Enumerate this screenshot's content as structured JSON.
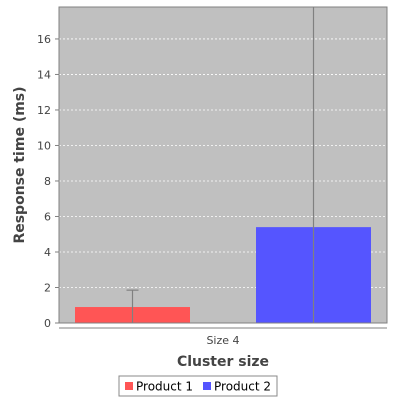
{
  "chart_data": {
    "type": "bar",
    "title": "",
    "xlabel": "Cluster size",
    "ylabel": "Response time (ms)",
    "categories": [
      "Size 4"
    ],
    "ylim": [
      0,
      17.8
    ],
    "yticks": [
      0,
      2,
      4,
      6,
      8,
      10,
      12,
      14,
      16
    ],
    "grid": true,
    "legend_position": "bottom",
    "series": [
      {
        "name": "Product 1",
        "color": "#ff5555",
        "values": [
          0.9
        ],
        "error_upper": [
          1.85
        ],
        "error_lower": [
          0.0
        ]
      },
      {
        "name": "Product 2",
        "color": "#5555ff",
        "values": [
          5.4
        ],
        "error_upper": [
          17.8
        ],
        "error_lower": [
          0.0
        ]
      }
    ],
    "colors": {
      "plot_background": "#c0c0c0",
      "gridline": "#ffffff",
      "error_bar": "#808080",
      "axis": "#808080",
      "text": "#444444"
    }
  }
}
